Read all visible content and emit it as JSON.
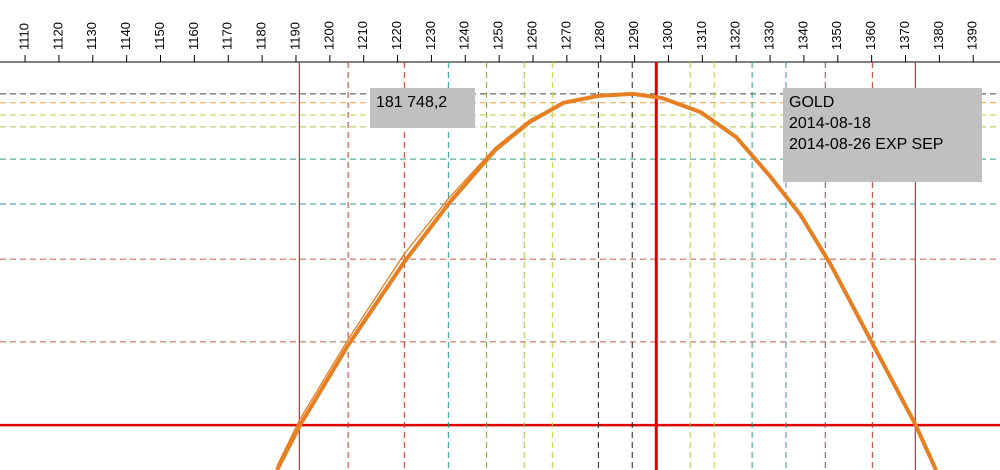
{
  "chart_data": {
    "type": "line",
    "xlim": [
      1102.6,
      1397.9
    ],
    "ylim": [
      0,
      100
    ],
    "xticks": [
      1110,
      1120,
      1130,
      1140,
      1150,
      1160,
      1170,
      1180,
      1190,
      1200,
      1210,
      1220,
      1230,
      1240,
      1250,
      1260,
      1270,
      1280,
      1290,
      1300,
      1310,
      1320,
      1330,
      1340,
      1350,
      1360,
      1370,
      1380,
      1390
    ],
    "series": [
      {
        "color": "#e67e22",
        "width": 4,
        "x": [
          1184.4,
          1191.2,
          1205.4,
          1222,
          1235,
          1248.8,
          1259,
          1269,
          1279.3,
          1289.3,
          1298,
          1309.5,
          1320,
          1330,
          1339,
          1348,
          1360,
          1373,
          1379
        ],
        "values": [
          0,
          11,
          30.6,
          51,
          65.2,
          78.4,
          85.3,
          90,
          91.7,
          92.2,
          91.2,
          87.7,
          81.6,
          72,
          62.5,
          50.2,
          31.4,
          11,
          0
        ]
      },
      {
        "color": "#e67e22",
        "width": 1.3,
        "x": [
          1184.4,
          1191.2,
          1205.4,
          1222,
          1235,
          1248.8,
          1259,
          1269,
          1279.3,
          1289.3,
          1298,
          1309.5,
          1320,
          1330,
          1339,
          1348,
          1360,
          1373,
          1379
        ],
        "values": [
          1,
          12.5,
          32,
          53,
          66.5,
          79,
          85.8,
          90.2,
          91.8,
          92.2,
          91.2,
          87.7,
          81.6,
          72,
          62.5,
          50.2,
          31.4,
          11,
          0
        ]
      }
    ],
    "x_lines": [
      {
        "value": 1191,
        "color": "#d62728",
        "dash": false,
        "width": 1.2
      },
      {
        "value": 1205.4,
        "color": "#c0392b",
        "dash": true,
        "width": 1
      },
      {
        "value": 1222,
        "color": "#c0392b",
        "dash": true,
        "width": 1
      },
      {
        "value": 1235,
        "color": "#2e9e8a",
        "dash": true,
        "width": 1
      },
      {
        "value": 1246.3,
        "color": "#7fa34a",
        "dash": true,
        "width": 1
      },
      {
        "value": 1257.4,
        "color": "#a8c24e",
        "dash": true,
        "width": 1
      },
      {
        "value": 1265.7,
        "color": "#c9c94a",
        "dash": true,
        "width": 1
      },
      {
        "value": 1279.3,
        "color": "#222222",
        "dash": true,
        "width": 1
      },
      {
        "value": 1289.3,
        "color": "#222222",
        "dash": true,
        "width": 1
      },
      {
        "value": 1296.4,
        "color": "#e00000",
        "dash": false,
        "width": 3
      },
      {
        "value": 1306.4,
        "color": "#a8c24e",
        "dash": true,
        "width": 1
      },
      {
        "value": 1313.5,
        "color": "#c9c94a",
        "dash": true,
        "width": 1
      },
      {
        "value": 1324.7,
        "color": "#2e9e8a",
        "dash": true,
        "width": 1
      },
      {
        "value": 1334.7,
        "color": "#3a8fa0",
        "dash": true,
        "width": 1
      },
      {
        "value": 1346.3,
        "color": "#c0392b",
        "dash": true,
        "width": 1
      },
      {
        "value": 1360.2,
        "color": "#c0392b",
        "dash": true,
        "width": 1
      },
      {
        "value": 1372.9,
        "color": "#d62728",
        "dash": false,
        "width": 1.2
      }
    ],
    "y_lines": [
      {
        "value": 92.2,
        "color": "#444444",
        "dash": true,
        "width": 1
      },
      {
        "value": 90,
        "color": "#e0a040",
        "dash": true,
        "width": 1
      },
      {
        "value": 87,
        "color": "#c9c94a",
        "dash": true,
        "width": 1
      },
      {
        "value": 84.1,
        "color": "#a8c24e",
        "dash": true,
        "width": 1
      },
      {
        "value": 76.2,
        "color": "#2e9e8a",
        "dash": true,
        "width": 1
      },
      {
        "value": 65.2,
        "color": "#3a8fa0",
        "dash": true,
        "width": 1
      },
      {
        "value": 51.7,
        "color": "#c06040",
        "dash": true,
        "width": 1
      },
      {
        "value": 31.4,
        "color": "#c06040",
        "dash": true,
        "width": 1
      },
      {
        "value": 11,
        "color": "#e00000",
        "dash": false,
        "width": 2.5
      }
    ],
    "annotations": [
      {
        "lines": [
          "181 748,2"
        ]
      },
      {
        "lines": [
          "GOLD",
          "2014-08-18",
          "2014-08-26 EXP SEP"
        ]
      }
    ]
  }
}
